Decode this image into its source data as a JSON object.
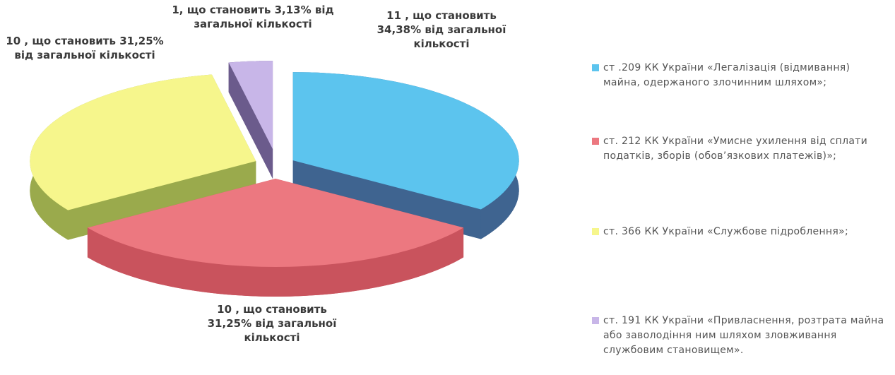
{
  "chart_data": {
    "type": "pie3d",
    "categories": [
      "ст .209 КК України «Легалізація (відмивання) майна, одержаного злочинним шляхом»;",
      "ст. 212 КК України «Умисне ухилення від сплати податків, зборів (обов’язкових платежів)»;",
      "ст. 366 КК України «Службове підроблення»;",
      "ст. 191 КК України «Привласнення, розтрата майна або заволодіння ним шляхом зловживання службовим становищем»."
    ],
    "values": [
      11,
      10,
      10,
      1
    ],
    "value_labels": [
      "11 , що становить 34,38% від загальної кількості",
      "10 , що становить 31,25% від загальної кількості",
      "10 , що становить 31,25% від загальної кількості",
      "1, що становить 3,13% від загальної кількості"
    ],
    "colors": [
      "#5cc4ee",
      "#ec7880",
      "#f6f68c",
      "#c8b6e8"
    ],
    "side_colors": [
      "#3f6490",
      "#c9535d",
      "#9aaa4c",
      "#6b5b8c"
    ]
  }
}
